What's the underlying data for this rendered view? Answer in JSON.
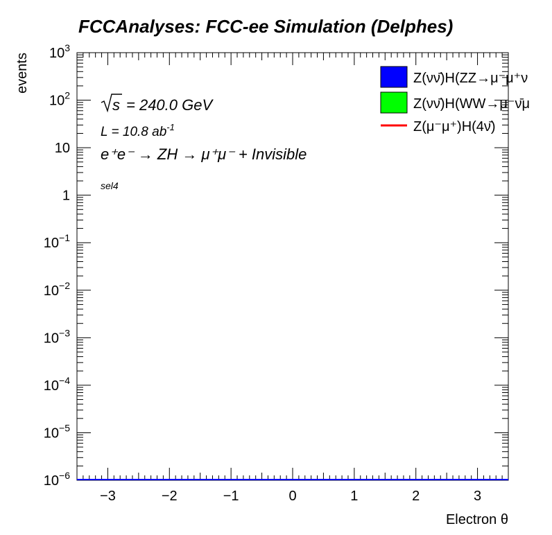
{
  "chart_data": {
    "type": "line",
    "title": "FCCAnalyses: FCC-ee Simulation (Delphes)",
    "xlabel": "Electron θ",
    "ylabel": "events",
    "xlim": [
      -3.5,
      3.5
    ],
    "ylim": [
      1e-06,
      1000
    ],
    "yscale": "log",
    "x_ticks": [
      -3,
      -2,
      -1,
      0,
      1,
      2,
      3
    ],
    "x_tick_labels": [
      "−3",
      "−2",
      "−1",
      "0",
      "1",
      "2",
      "3"
    ],
    "y_tick_labels": [
      {
        "base": "10",
        "exp": "−6",
        "value": 1e-06
      },
      {
        "base": "10",
        "exp": "−5",
        "value": 1e-05
      },
      {
        "base": "10",
        "exp": "−4",
        "value": 0.0001
      },
      {
        "base": "10",
        "exp": "−3",
        "value": 0.001
      },
      {
        "base": "10",
        "exp": "−2",
        "value": 0.01
      },
      {
        "base": "10",
        "exp": "−1",
        "value": 0.1
      },
      {
        "base": "1",
        "exp": "",
        "value": 1
      },
      {
        "base": "10",
        "exp": "",
        "value": 10
      },
      {
        "base": "10",
        "exp": "2",
        "value": 100
      },
      {
        "base": "10",
        "exp": "3",
        "value": 1000
      }
    ],
    "grid": false,
    "legend_position": "top-right",
    "series": [
      {
        "name": "Z(νν̄)H(ZZ→μ⁻μ⁺ν",
        "style": "filled",
        "color": "#0000ff",
        "x": [
          -3.5,
          3.5
        ],
        "y": [
          1e-06,
          1e-06
        ]
      },
      {
        "name": "Z(νν̄)H(WW→μ⁻ν̄μ",
        "style": "filled",
        "color": "#00ff00",
        "x": [
          -3.5,
          3.5
        ],
        "y": [
          1e-06,
          1e-06
        ]
      },
      {
        "name": "Z(μ⁻μ⁺)H(4ν̄)",
        "style": "line",
        "color": "#ff0000",
        "x": [
          -3.5,
          3.5
        ],
        "y": [
          1e-06,
          1e-06
        ]
      }
    ],
    "annotations": {
      "sqrt_s": "= 240.0 GeV",
      "lumi": "L = 10.8 ab",
      "lumi_exp": "-1",
      "process": "e⁺e⁻ → ZH → μ⁺μ⁻ + Invisible",
      "selection": "sel4"
    }
  }
}
